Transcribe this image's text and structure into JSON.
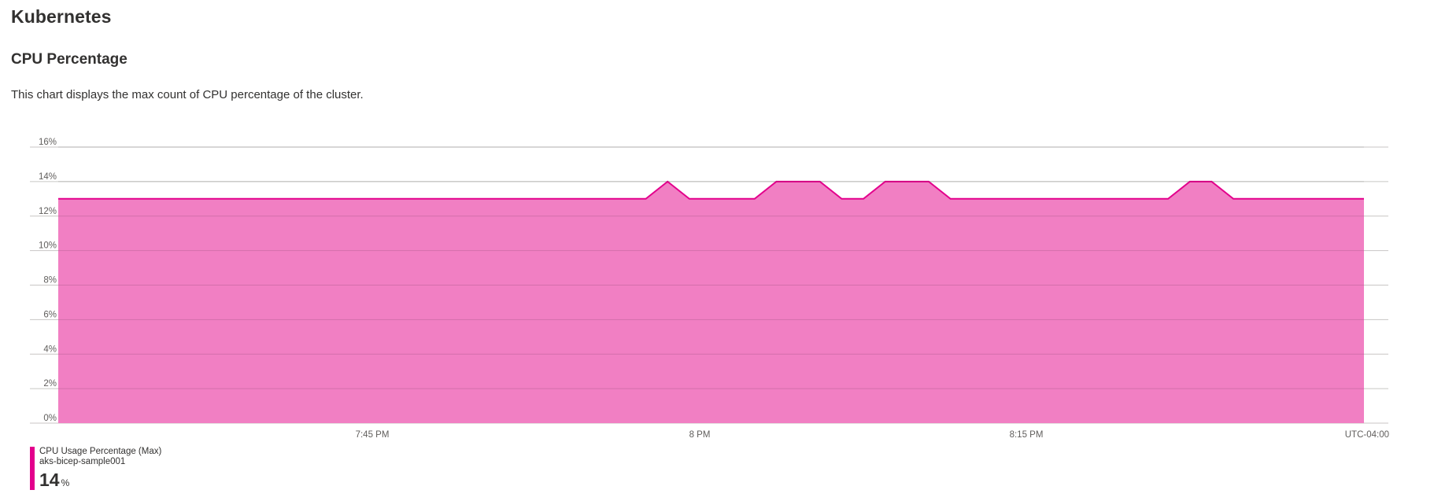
{
  "header": {
    "title": "Kubernetes"
  },
  "section": {
    "title": "CPU Percentage",
    "description": "This chart displays the max count of CPU percentage of the cluster."
  },
  "legend": {
    "series_name": "CPU Usage Percentage (Max)",
    "resource": "aks-bicep-sample001",
    "value": "14",
    "unit": "%"
  },
  "colors": {
    "accent": "#e3008c",
    "area_fill": "#f17fc3",
    "gridline": "#c8c6c4"
  },
  "chart_data": {
    "type": "area",
    "title": "",
    "xlabel": "",
    "ylabel": "",
    "ylim": [
      0,
      16
    ],
    "y_ticks": [
      "0%",
      "2%",
      "4%",
      "6%",
      "8%",
      "10%",
      "12%",
      "14%",
      "16%"
    ],
    "x_tick_labels": [
      "7:45 PM",
      "8 PM",
      "8:15 PM"
    ],
    "timezone_label": "UTC-04:00",
    "grid": true,
    "legend_placement": "bottom-left",
    "series": [
      {
        "values": [
          13,
          13,
          13,
          13,
          13,
          13,
          13,
          13,
          13,
          13,
          13,
          13,
          13,
          13,
          13,
          13,
          13,
          13,
          13,
          13,
          13,
          13,
          13,
          13,
          13,
          13,
          13,
          13,
          14,
          13,
          13,
          13,
          13,
          14,
          14,
          14,
          13,
          13,
          14,
          14,
          14,
          13,
          13,
          13,
          13,
          13,
          13,
          13,
          13,
          13,
          13,
          13,
          14,
          14,
          13,
          13,
          13,
          13,
          13,
          13,
          13
        ]
      }
    ]
  }
}
